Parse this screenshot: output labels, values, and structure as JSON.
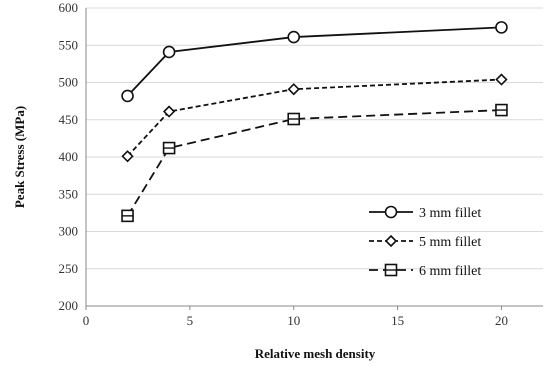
{
  "chart_data": {
    "type": "line",
    "xlabel": "Relative mesh density",
    "ylabel": "Peak Stress (MPa)",
    "xlim": [
      0,
      22
    ],
    "ylim": [
      200,
      600
    ],
    "xticks": [
      0,
      5,
      10,
      15,
      20
    ],
    "yticks": [
      200,
      250,
      300,
      350,
      400,
      450,
      500,
      550,
      600
    ],
    "x": [
      2,
      4,
      10,
      20
    ],
    "grid": "horizontal",
    "legend_position": "bottom-right",
    "series": [
      {
        "name": "3 mm fillet",
        "values": [
          482,
          541,
          561,
          574
        ],
        "marker": "circle",
        "dash": "solid",
        "color": "#111111"
      },
      {
        "name": "5 mm fillet",
        "values": [
          401,
          461,
          491,
          504
        ],
        "marker": "diamond",
        "dash": "short-dash",
        "color": "#111111"
      },
      {
        "name": "6 mm fillet",
        "values": [
          321,
          412,
          451,
          463
        ],
        "marker": "square",
        "dash": "long-dash",
        "color": "#111111"
      }
    ]
  }
}
